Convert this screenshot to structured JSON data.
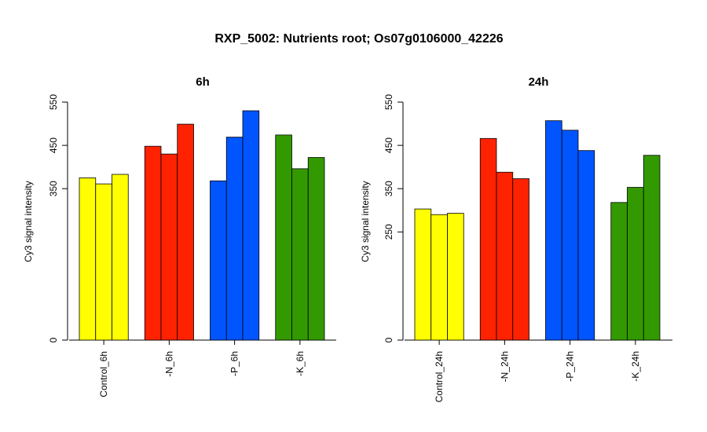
{
  "title": "RXP_5002: Nutrients root; Os07g0106000_42226",
  "chart_data": [
    {
      "type": "bar",
      "title": "6h",
      "ylabel": "Cy3 signal intensity",
      "yticks": [
        0,
        350,
        450,
        550
      ],
      "ylim": [
        0,
        550
      ],
      "groups": [
        {
          "label": "Control_6h",
          "color": "#ffff00",
          "values": [
            375,
            361,
            383
          ]
        },
        {
          "label": "-N_6h",
          "color": "#ff2200",
          "values": [
            448,
            430,
            499
          ]
        },
        {
          "label": "-P_6h",
          "color": "#0055ff",
          "values": [
            368,
            469,
            530
          ]
        },
        {
          "label": "-K_6h",
          "color": "#339900",
          "values": [
            474,
            396,
            422
          ]
        }
      ]
    },
    {
      "type": "bar",
      "title": "24h",
      "ylabel": "Cy3 signal intensity",
      "yticks": [
        0,
        250,
        350,
        450,
        550
      ],
      "ylim": [
        0,
        550
      ],
      "groups": [
        {
          "label": "Control_24h",
          "color": "#ffff00",
          "values": [
            303,
            290,
            293
          ]
        },
        {
          "label": "-N_24h",
          "color": "#ff2200",
          "values": [
            466,
            388,
            373
          ]
        },
        {
          "label": "-P_24h",
          "color": "#0055ff",
          "values": [
            507,
            485,
            438
          ]
        },
        {
          "label": "-K_24h",
          "color": "#339900",
          "values": [
            318,
            353,
            427
          ]
        }
      ]
    }
  ]
}
